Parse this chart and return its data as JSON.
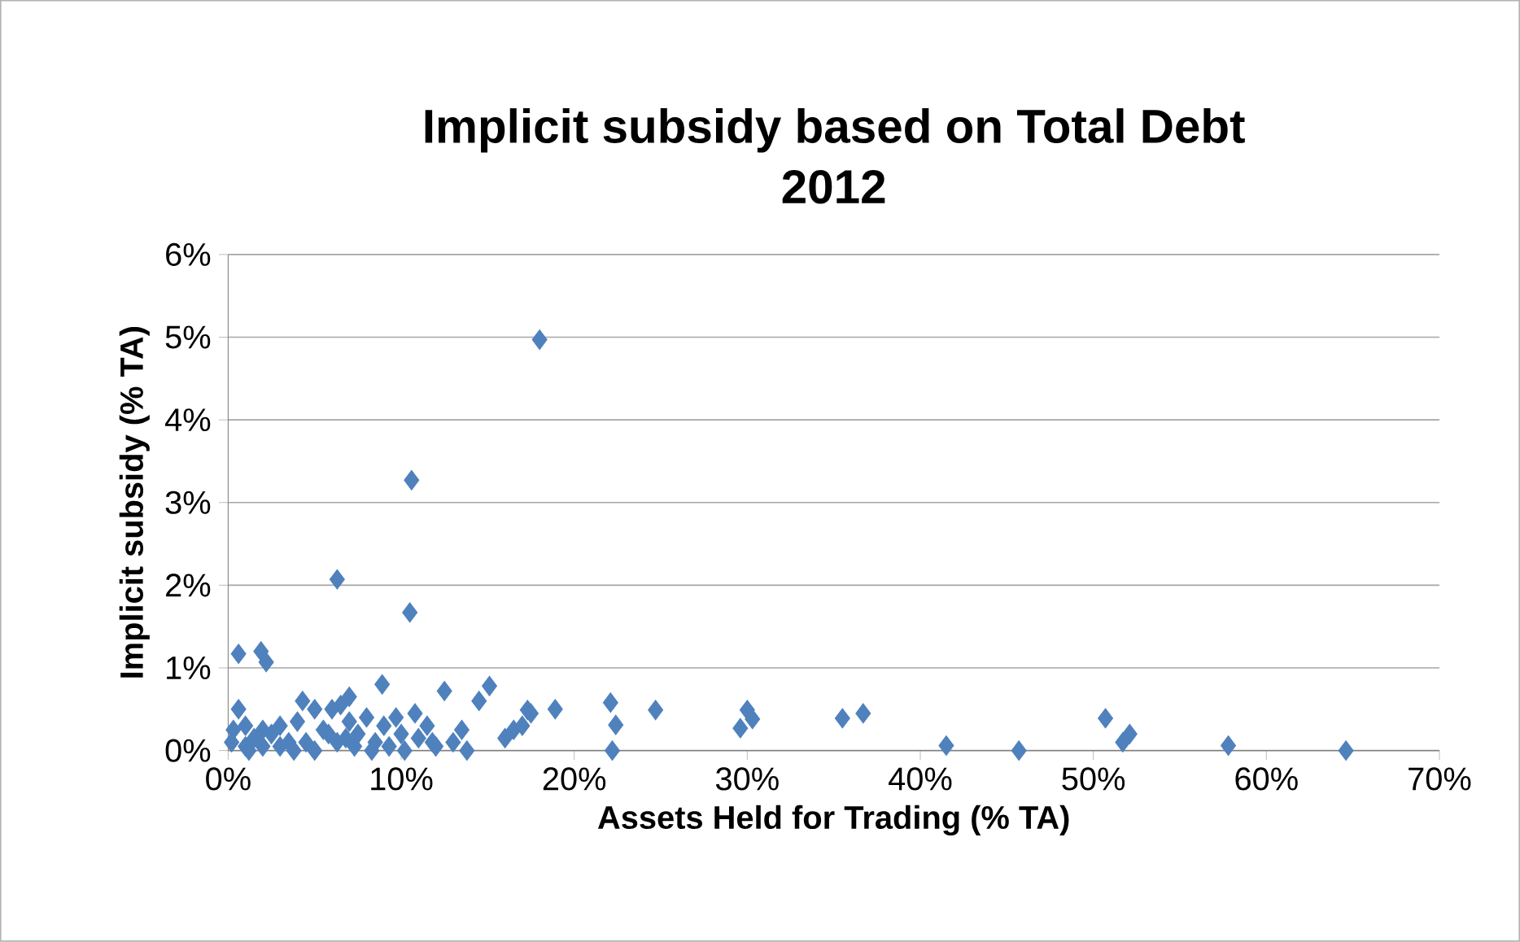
{
  "chart_data": {
    "type": "scatter",
    "title": "Implicit subsidy based on Total Debt\n2012",
    "xlabel": "Assets Held for Trading (% TA)",
    "ylabel": "Implicit subsidy (% TA)",
    "marker": "diamond",
    "grid": "y",
    "xlim": [
      0,
      70
    ],
    "ylim": [
      0,
      6
    ],
    "xticks": [
      {
        "value": 0,
        "label": "0%"
      },
      {
        "value": 10,
        "label": "10%"
      },
      {
        "value": 20,
        "label": "20%"
      },
      {
        "value": 30,
        "label": "30%"
      },
      {
        "value": 40,
        "label": "40%"
      },
      {
        "value": 50,
        "label": "50%"
      },
      {
        "value": 60,
        "label": "60%"
      },
      {
        "value": 70,
        "label": "70%"
      }
    ],
    "yticks": [
      {
        "value": 0,
        "label": "0%"
      },
      {
        "value": 1,
        "label": "1%"
      },
      {
        "value": 2,
        "label": "2%"
      },
      {
        "value": 3,
        "label": "3%"
      },
      {
        "value": 4,
        "label": "4%"
      },
      {
        "value": 5,
        "label": "5%"
      },
      {
        "value": 6,
        "label": "6%"
      }
    ],
    "x": [
      18.0,
      10.6,
      6.3,
      10.5,
      0.6,
      1.9,
      2.2,
      41.5,
      45.7,
      50.7,
      52.1,
      51.7,
      57.8,
      64.6,
      17.3,
      18.9,
      22.1,
      22.4,
      22.2,
      24.7,
      30.0,
      29.6,
      30.3,
      35.5,
      36.7,
      0.3,
      0.6,
      1.0,
      1.0,
      1.5,
      2.0,
      2.5,
      3.0,
      3.0,
      3.5,
      4.0,
      4.3,
      4.5,
      5.0,
      5.0,
      5.5,
      6.0,
      6.3,
      6.5,
      7.0,
      7.0,
      7.3,
      7.5,
      8.0,
      8.5,
      8.9,
      9.0,
      9.3,
      9.7,
      10.0,
      10.2,
      10.8,
      11.0,
      11.5,
      12.0,
      12.5,
      13.0,
      13.5,
      13.8,
      14.5,
      15.1,
      16.0,
      16.5,
      17.0,
      17.5,
      0.2,
      1.2,
      2.0,
      3.8,
      5.8,
      8.3,
      11.8,
      6.8
    ],
    "values": [
      4.97,
      3.27,
      2.07,
      1.67,
      1.17,
      1.2,
      1.07,
      0.06,
      0.0,
      0.39,
      0.2,
      0.1,
      0.06,
      0.0,
      0.49,
      0.5,
      0.58,
      0.31,
      0.0,
      0.49,
      0.49,
      0.27,
      0.38,
      0.39,
      0.45,
      0.25,
      0.5,
      0.3,
      0.05,
      0.15,
      0.05,
      0.2,
      0.3,
      0.05,
      0.1,
      0.35,
      0.6,
      0.1,
      0.5,
      0.0,
      0.25,
      0.5,
      0.1,
      0.55,
      0.65,
      0.35,
      0.05,
      0.2,
      0.4,
      0.1,
      0.8,
      0.3,
      0.05,
      0.4,
      0.2,
      0.0,
      0.45,
      0.15,
      0.3,
      0.05,
      0.72,
      0.1,
      0.25,
      0.0,
      0.6,
      0.78,
      0.15,
      0.25,
      0.3,
      0.45,
      0.1,
      0.0,
      0.25,
      0.0,
      0.2,
      0.0,
      0.1,
      0.15
    ],
    "color": "#4f81bd"
  }
}
